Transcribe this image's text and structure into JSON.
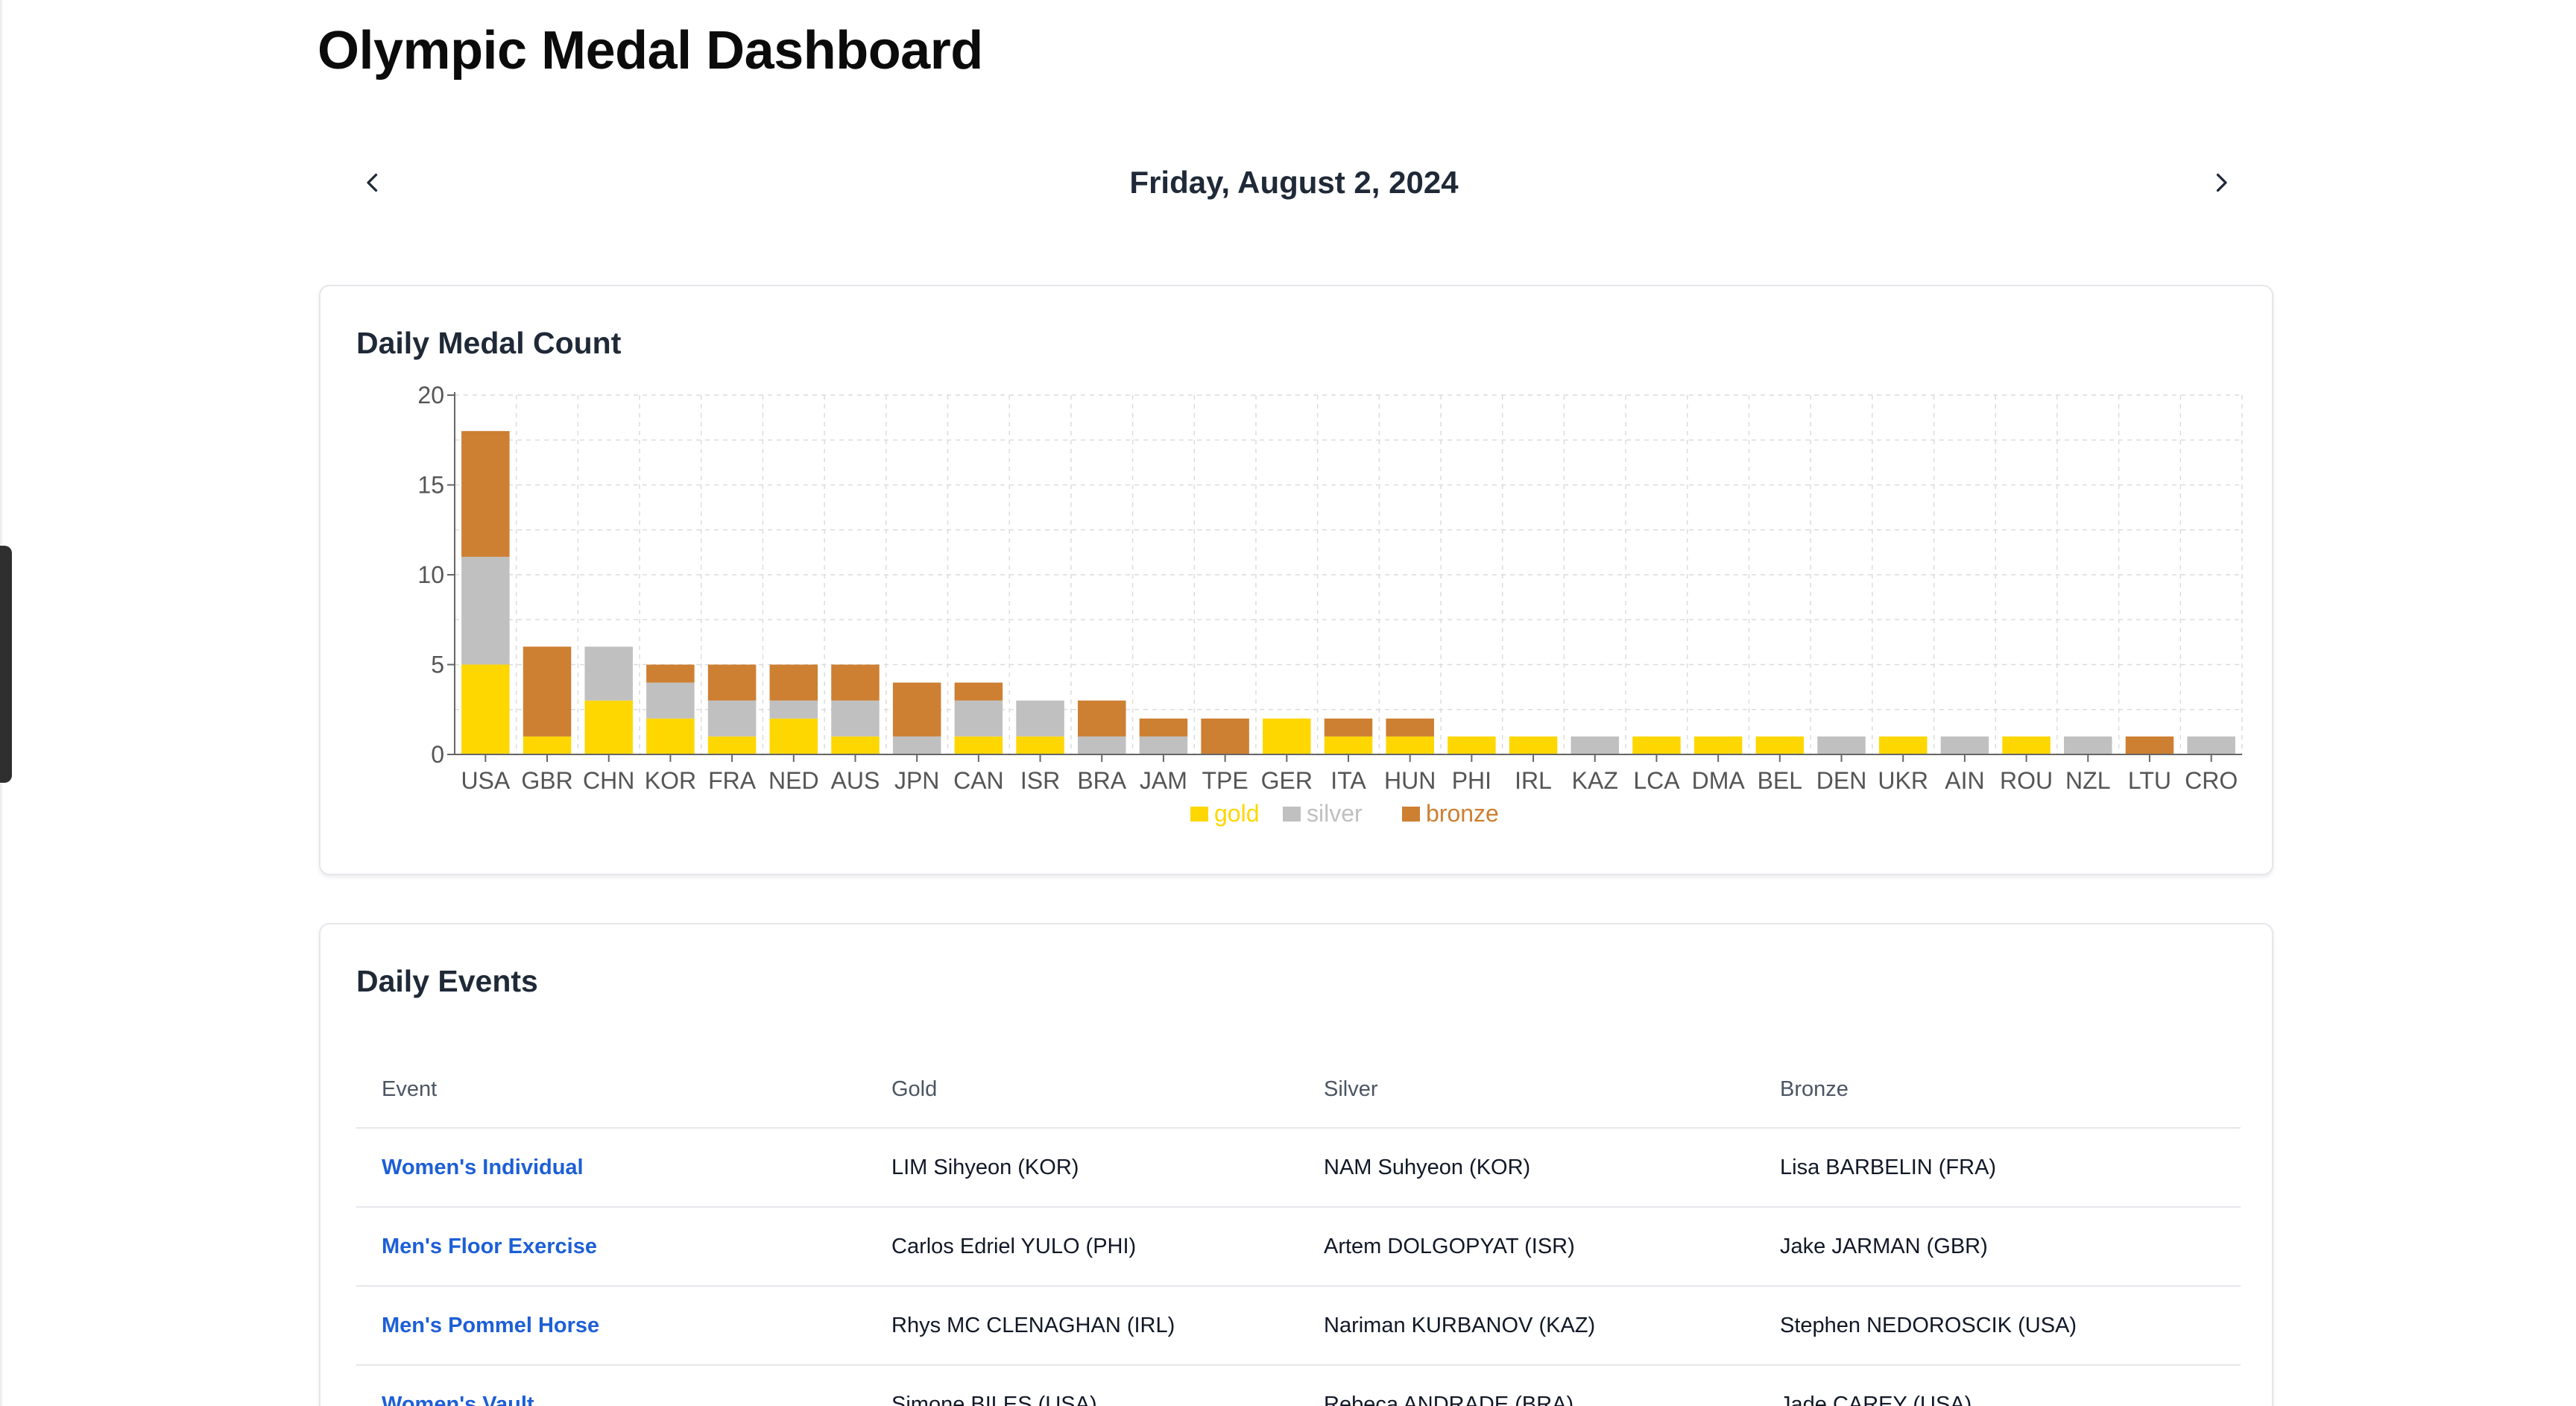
{
  "header": {
    "title": "Olympic Medal Dashboard"
  },
  "date_nav": {
    "date": "Friday, August 2, 2024",
    "prev_icon": "chevron-left-icon",
    "next_icon": "chevron-right-icon"
  },
  "chart_card": {
    "title": "Daily Medal Count"
  },
  "chart_data": {
    "type": "bar",
    "stacked": true,
    "title": "Daily Medal Count",
    "xlabel": "",
    "ylabel": "",
    "ylim": [
      0,
      20
    ],
    "yticks": [
      "0",
      "5",
      "10",
      "15",
      "20"
    ],
    "grid": true,
    "legend": "bottom",
    "categories": [
      "USA",
      "GBR",
      "CHN",
      "KOR",
      "FRA",
      "NED",
      "AUS",
      "JPN",
      "CAN",
      "ISR",
      "BRA",
      "JAM",
      "TPE",
      "GER",
      "ITA",
      "HUN",
      "PHI",
      "IRL",
      "KAZ",
      "LCA",
      "DMA",
      "BEL",
      "DEN",
      "UKR",
      "AIN",
      "ROU",
      "NZL",
      "LTU",
      "CRO"
    ],
    "series": [
      {
        "name": "gold",
        "color": "#FFD700",
        "values": [
          5,
          1,
          3,
          2,
          1,
          2,
          1,
          0,
          1,
          1,
          0,
          0,
          0,
          2,
          1,
          1,
          1,
          1,
          0,
          1,
          1,
          1,
          0,
          1,
          0,
          1,
          0,
          0,
          0
        ]
      },
      {
        "name": "silver",
        "color": "#C0C0C0",
        "values": [
          6,
          0,
          3,
          2,
          2,
          1,
          2,
          1,
          2,
          2,
          1,
          1,
          0,
          0,
          0,
          0,
          0,
          0,
          1,
          0,
          0,
          0,
          1,
          0,
          1,
          0,
          1,
          0,
          1
        ]
      },
      {
        "name": "bronze",
        "color": "#CD7F32",
        "values": [
          7,
          5,
          0,
          1,
          2,
          2,
          2,
          3,
          1,
          0,
          2,
          1,
          2,
          0,
          1,
          1,
          0,
          0,
          0,
          0,
          0,
          0,
          0,
          0,
          0,
          0,
          0,
          1,
          0
        ]
      }
    ]
  },
  "events_card": {
    "title": "Daily Events",
    "columns": [
      "Event",
      "Gold",
      "Silver",
      "Bronze"
    ],
    "rows": [
      {
        "event": "Women's Individual",
        "gold": "LIM Sihyeon (KOR)",
        "silver": "NAM Suhyeon (KOR)",
        "bronze": "Lisa BARBELIN (FRA)"
      },
      {
        "event": "Men's Floor Exercise",
        "gold": "Carlos Edriel YULO (PHI)",
        "silver": "Artem DOLGOPYAT (ISR)",
        "bronze": "Jake JARMAN (GBR)"
      },
      {
        "event": "Men's Pommel Horse",
        "gold": "Rhys MC CLENAGHAN (IRL)",
        "silver": "Nariman KURBANOV (KAZ)",
        "bronze": "Stephen NEDOROSCIK (USA)"
      },
      {
        "event": "Women's Vault",
        "gold": "Simone BILES (USA)",
        "silver": "Rebeca ANDRADE (BRA)",
        "bronze": "Jade CAREY (USA)"
      }
    ]
  }
}
